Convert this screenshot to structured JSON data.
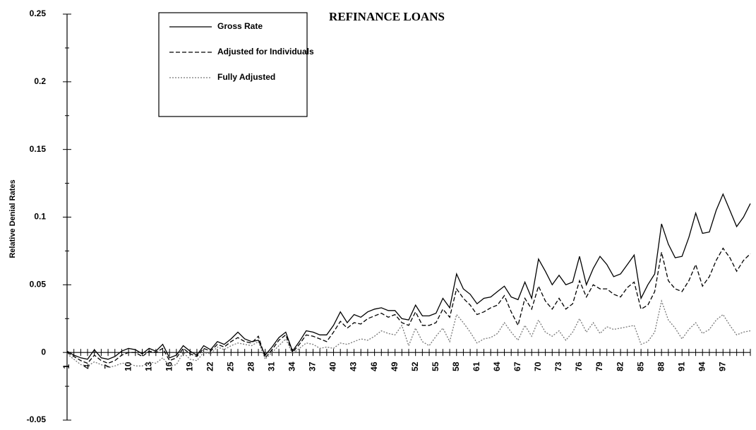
{
  "chart_data": {
    "type": "line",
    "title": "REFINANCE LOANS",
    "y_label": "Relative Denial Rates",
    "categories": [
      "1",
      null,
      null,
      "4",
      null,
      null,
      "7",
      null,
      null,
      "10",
      null,
      null,
      "13",
      null,
      null,
      "16",
      null,
      null,
      "19",
      null,
      null,
      "22",
      null,
      null,
      "25",
      null,
      null,
      "28",
      null,
      null,
      "31",
      null,
      null,
      "34",
      null,
      null,
      "37",
      null,
      null,
      "40",
      null,
      null,
      "43",
      null,
      null,
      "46",
      null,
      null,
      "49",
      null,
      null,
      "52",
      null,
      null,
      "55",
      null,
      null,
      "58",
      null,
      null,
      "61",
      null,
      null,
      "64",
      null,
      null,
      "67",
      null,
      null,
      "70",
      null,
      null,
      "73",
      null,
      null,
      "76",
      null,
      null,
      "79",
      null,
      null,
      "82",
      null,
      null,
      "85",
      null,
      null,
      "88",
      null,
      null,
      "91",
      null,
      null,
      "94",
      null,
      null,
      "97",
      null,
      null,
      null,
      null
    ],
    "series": [
      {
        "name": "Gross Rate",
        "color": "#000000",
        "dash": "solid",
        "values": [
          0.001,
          -0.002,
          -0.004,
          -0.005,
          0.002,
          -0.004,
          -0.005,
          -0.003,
          0.001,
          0.003,
          0.002,
          -0.001,
          0.003,
          0.001,
          0.006,
          -0.004,
          -0.002,
          0.005,
          0.001,
          -0.002,
          0.005,
          0.002,
          0.008,
          0.006,
          0.01,
          0.015,
          0.01,
          0.008,
          0.009,
          -0.002,
          0.004,
          0.011,
          0.015,
          0.001,
          0.008,
          0.016,
          0.015,
          0.013,
          0.013,
          0.02,
          0.03,
          0.022,
          0.028,
          0.026,
          0.03,
          0.032,
          0.033,
          0.031,
          0.031,
          0.025,
          0.024,
          0.035,
          0.027,
          0.027,
          0.029,
          0.04,
          0.033,
          0.058,
          0.047,
          0.043,
          0.036,
          0.04,
          0.041,
          0.045,
          0.049,
          0.041,
          0.039,
          0.052,
          0.04,
          0.069,
          0.06,
          0.05,
          0.057,
          0.05,
          0.052,
          0.071,
          0.05,
          0.062,
          0.071,
          0.065,
          0.056,
          0.058,
          0.065,
          0.072,
          0.04,
          0.05,
          0.058,
          0.095,
          0.08,
          0.07,
          0.071,
          0.085,
          0.103,
          0.088,
          0.089,
          0.105,
          0.117,
          0.105,
          0.093,
          0.1,
          0.11
        ]
      },
      {
        "name": "Adjusted for Individuals",
        "color": "#000000",
        "dash": "dashed",
        "values": [
          0,
          -0.003,
          -0.006,
          -0.008,
          -0.002,
          -0.006,
          -0.008,
          -0.006,
          -0.002,
          0,
          0,
          -0.003,
          0.001,
          0,
          0.003,
          -0.006,
          -0.004,
          0.003,
          -0.001,
          -0.003,
          0.003,
          0.001,
          0.006,
          0.004,
          0.008,
          0.011,
          0.008,
          0.007,
          0.012,
          -0.004,
          0.002,
          0.009,
          0.013,
          0,
          0.006,
          0.013,
          0.012,
          0.01,
          0.008,
          0.015,
          0.023,
          0.018,
          0.022,
          0.021,
          0.025,
          0.027,
          0.029,
          0.026,
          0.028,
          0.022,
          0.02,
          0.03,
          0.02,
          0.02,
          0.022,
          0.032,
          0.026,
          0.047,
          0.04,
          0.035,
          0.028,
          0.03,
          0.033,
          0.035,
          0.042,
          0.03,
          0.02,
          0.04,
          0.032,
          0.049,
          0.038,
          0.032,
          0.04,
          0.032,
          0.036,
          0.053,
          0.041,
          0.05,
          0.047,
          0.047,
          0.043,
          0.041,
          0.048,
          0.052,
          0.032,
          0.035,
          0.045,
          0.074,
          0.053,
          0.047,
          0.045,
          0.053,
          0.065,
          0.049,
          0.056,
          0.068,
          0.077,
          0.07,
          0.06,
          0.068,
          0.073
        ]
      },
      {
        "name": "Fully Adjusted",
        "color": "#777777",
        "dash": "dotted",
        "values": [
          -0.001,
          -0.005,
          -0.009,
          -0.01,
          -0.007,
          -0.009,
          -0.011,
          -0.01,
          -0.008,
          -0.008,
          -0.01,
          -0.01,
          -0.007,
          -0.008,
          -0.004,
          -0.01,
          -0.009,
          0,
          -0.005,
          -0.006,
          0,
          -0.001,
          0.004,
          0.002,
          0.005,
          0.007,
          0.006,
          0.005,
          0.008,
          -0.005,
          0,
          0.005,
          0.01,
          -0.001,
          0.003,
          0.007,
          0.006,
          0.003,
          0.004,
          0.003,
          0.007,
          0.006,
          0.008,
          0.01,
          0.009,
          0.012,
          0.016,
          0.014,
          0.013,
          0.02,
          0.005,
          0.018,
          0.008,
          0.005,
          0.012,
          0.018,
          0.008,
          0.028,
          0.022,
          0.015,
          0.007,
          0.01,
          0.011,
          0.014,
          0.022,
          0.015,
          0.009,
          0.02,
          0.012,
          0.024,
          0.015,
          0.012,
          0.016,
          0.009,
          0.015,
          0.025,
          0.015,
          0.022,
          0.014,
          0.019,
          0.017,
          0.018,
          0.019,
          0.02,
          0.006,
          0.008,
          0.015,
          0.038,
          0.024,
          0.018,
          0.01,
          0.017,
          0.022,
          0.014,
          0.017,
          0.024,
          0.028,
          0.02,
          0.013,
          0.015,
          0.016
        ]
      }
    ],
    "ylim": [
      -0.05,
      0.25
    ],
    "yticks": [
      -0.05,
      0,
      0.05,
      0.1,
      0.15,
      0.2,
      0.25
    ]
  }
}
